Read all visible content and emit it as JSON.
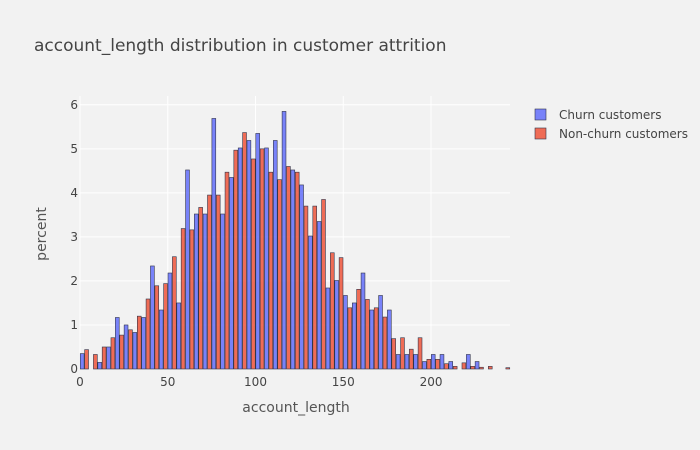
{
  "chart_data": {
    "type": "bar",
    "title": "account_length distribution in customer attrition",
    "xlabel": "account_length",
    "ylabel": "percent",
    "xlim": [
      0,
      245
    ],
    "ylim": [
      0,
      6.2
    ],
    "x_ticks": [
      0,
      50,
      100,
      150,
      200
    ],
    "y_ticks": [
      0,
      1,
      2,
      3,
      4,
      5,
      6
    ],
    "grid": true,
    "legend_position": "top-right",
    "bin_width": 5,
    "bin_starts": [
      0,
      5,
      10,
      15,
      20,
      25,
      30,
      35,
      40,
      45,
      50,
      55,
      60,
      65,
      70,
      75,
      80,
      85,
      90,
      95,
      100,
      105,
      110,
      115,
      120,
      125,
      130,
      135,
      140,
      145,
      150,
      155,
      160,
      165,
      170,
      175,
      180,
      185,
      190,
      195,
      200,
      205,
      210,
      215,
      220,
      225,
      230,
      235,
      240
    ],
    "series": [
      {
        "name": "Churn customers",
        "color": "#636efa",
        "values": [
          0.35,
          0,
          0.15,
          0.5,
          1.17,
          1.0,
          0.83,
          1.17,
          2.34,
          1.34,
          2.18,
          1.5,
          4.52,
          3.52,
          3.52,
          5.69,
          3.52,
          4.35,
          5.02,
          5.19,
          5.35,
          5.02,
          5.19,
          5.85,
          4.52,
          4.18,
          3.02,
          3.35,
          1.84,
          2.01,
          1.67,
          1.5,
          2.18,
          1.34,
          1.67,
          1.34,
          0.33,
          0.33,
          0.33,
          0.17,
          0.33,
          0.33,
          0.17,
          0,
          0.33,
          0.17,
          0,
          0,
          0
        ]
      },
      {
        "name": "Non-churn customers",
        "color": "#ef553b",
        "values": [
          0.44,
          0.33,
          0.5,
          0.71,
          0.77,
          0.89,
          1.2,
          1.59,
          1.89,
          1.94,
          2.55,
          3.19,
          3.16,
          3.67,
          3.95,
          3.95,
          4.47,
          4.97,
          5.37,
          4.77,
          5.0,
          4.47,
          4.3,
          4.6,
          4.47,
          3.7,
          3.7,
          3.85,
          2.64,
          2.53,
          1.39,
          1.81,
          1.58,
          1.39,
          1.18,
          0.69,
          0.71,
          0.45,
          0.71,
          0.22,
          0.22,
          0.12,
          0.06,
          0.14,
          0.06,
          0.04,
          0.06,
          0,
          0.03
        ]
      }
    ]
  }
}
